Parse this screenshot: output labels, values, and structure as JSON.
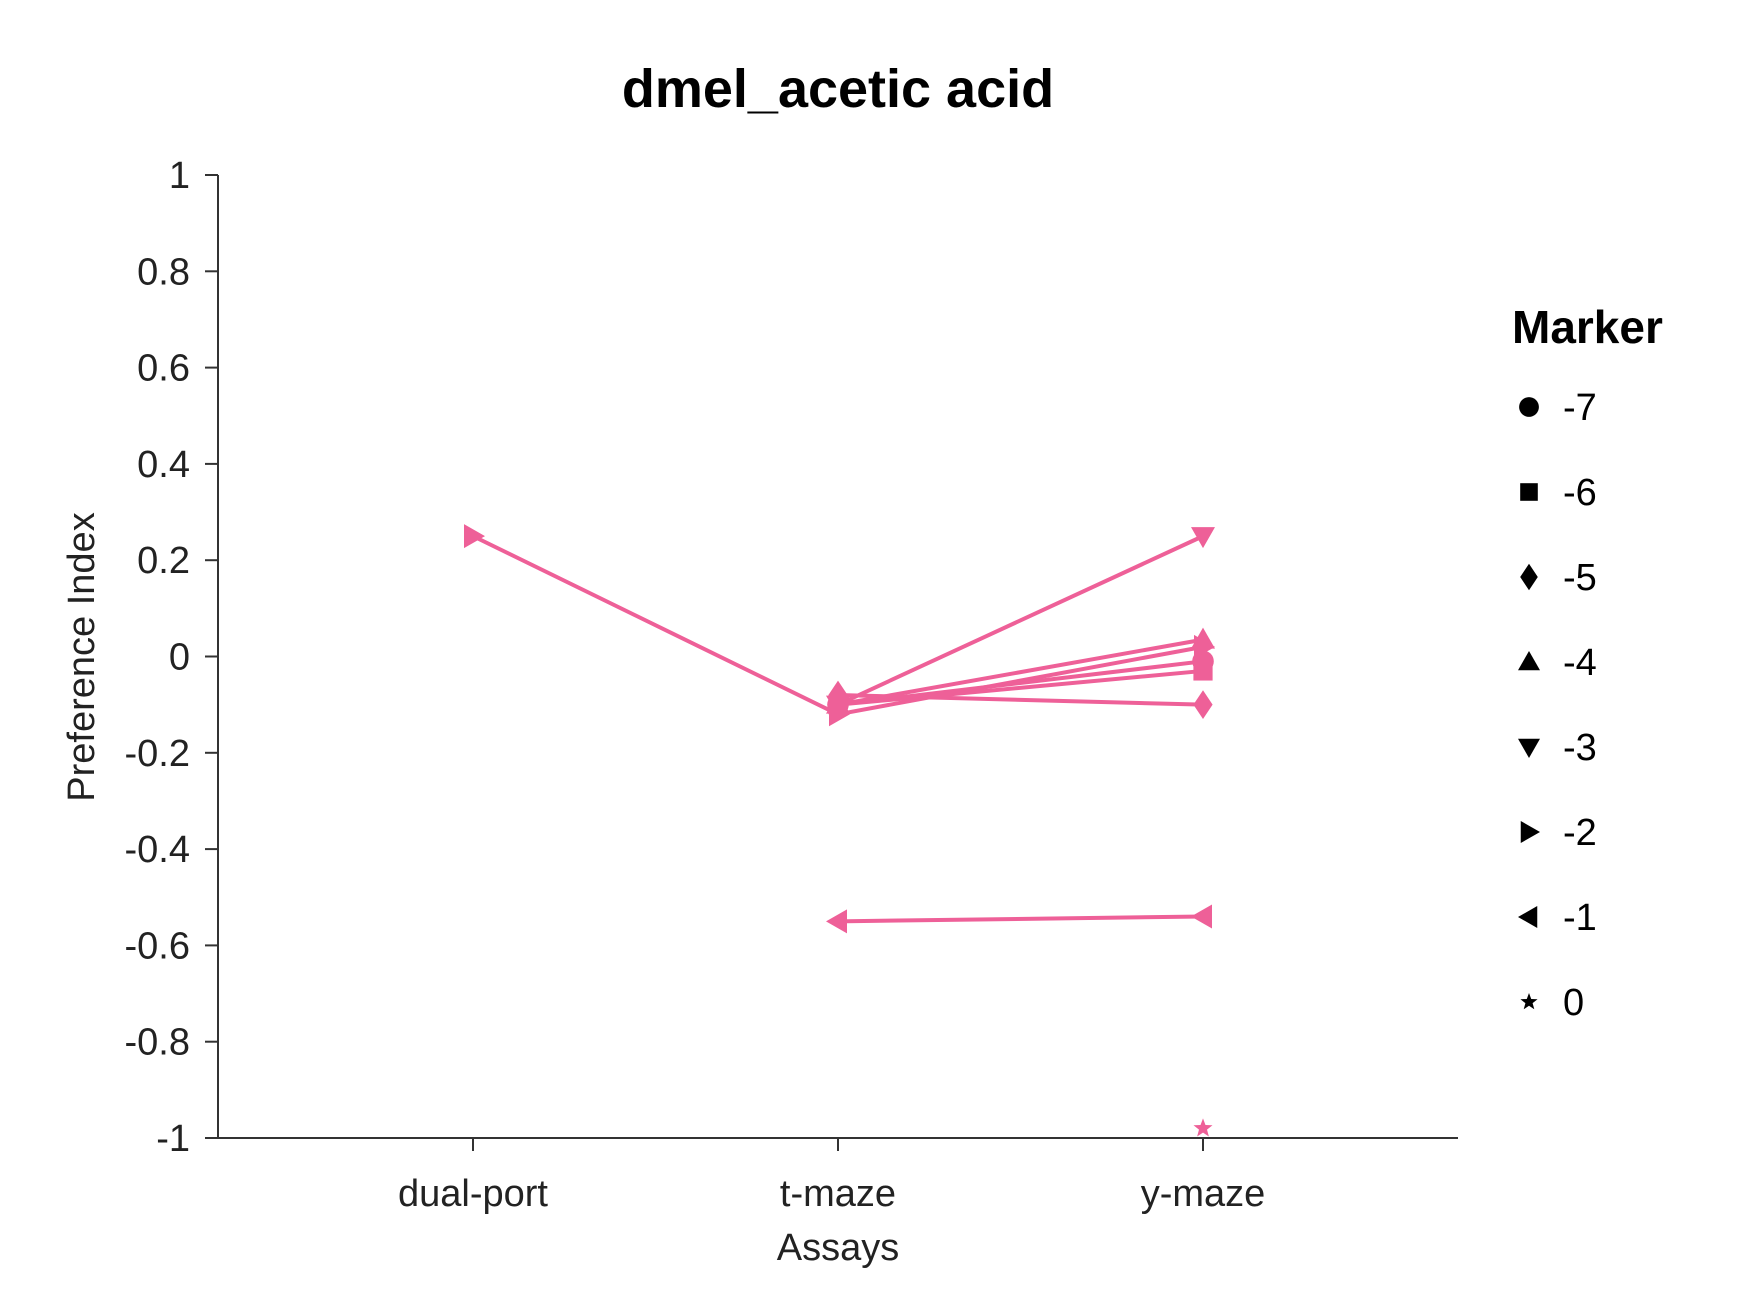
{
  "chart_data": {
    "type": "line",
    "title": "dmel_acetic acid",
    "xlabel": "Assays",
    "ylabel": "Preference Index",
    "categories": [
      "dual-port",
      "t-maze",
      "y-maze"
    ],
    "ylim": [
      -1,
      1
    ],
    "yticks": [
      1,
      0.8,
      0.6,
      0.4,
      0.2,
      0,
      -0.2,
      -0.4,
      -0.6,
      -0.8,
      -1
    ],
    "ytick_labels": [
      "1",
      "0.8",
      "0.6",
      "0.4",
      "0.2",
      "0",
      "-0.2",
      "-0.4",
      "-0.6",
      "-0.8",
      "-1"
    ],
    "grid": false,
    "color": "#EE6098",
    "legend": {
      "title": "Marker",
      "placement": "right",
      "items": [
        {
          "label": "-7",
          "marker": "circle"
        },
        {
          "label": "-6",
          "marker": "square"
        },
        {
          "label": "-5",
          "marker": "diamond"
        },
        {
          "label": "-4",
          "marker": "triangle-up"
        },
        {
          "label": "-3",
          "marker": "triangle-down"
        },
        {
          "label": "-2",
          "marker": "triangle-right"
        },
        {
          "label": "-1",
          "marker": "triangle-left"
        },
        {
          "label": "0",
          "marker": "star"
        }
      ]
    },
    "series": [
      {
        "marker": "circle",
        "values": [
          null,
          -0.1,
          -0.01
        ]
      },
      {
        "marker": "square",
        "values": [
          null,
          -0.1,
          -0.03
        ]
      },
      {
        "marker": "diamond",
        "values": [
          null,
          -0.08,
          -0.1
        ]
      },
      {
        "marker": "triangle-up",
        "values": [
          null,
          -0.1,
          0.035
        ]
      },
      {
        "marker": "triangle-down",
        "values": [
          null,
          -0.1,
          0.25
        ]
      },
      {
        "marker": "triangle-right",
        "values": [
          0.25,
          -0.12,
          0.02
        ]
      },
      {
        "marker": "triangle-left",
        "values": [
          null,
          -0.55,
          -0.54
        ]
      },
      {
        "marker": "star",
        "values": [
          null,
          null,
          -0.98
        ]
      }
    ]
  }
}
